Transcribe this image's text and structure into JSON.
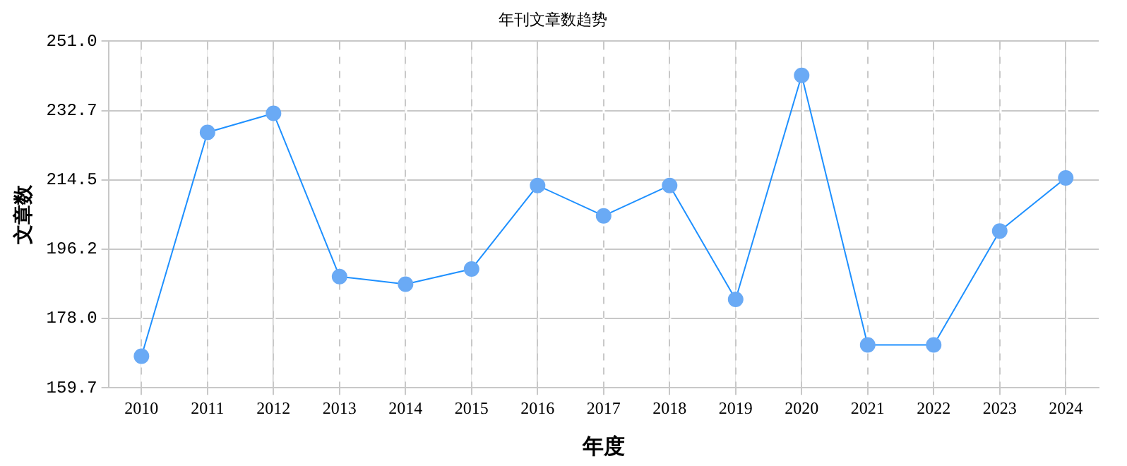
{
  "chart_data": {
    "type": "line",
    "title": "年刊文章数趋势",
    "xlabel": "年度",
    "ylabel": "文章数",
    "categories": [
      "2010",
      "2011",
      "2012",
      "2013",
      "2014",
      "2015",
      "2016",
      "2017",
      "2018",
      "2019",
      "2020",
      "2021",
      "2022",
      "2023",
      "2024"
    ],
    "series": [
      {
        "color": "#1e90ff",
        "values": [
          168,
          227,
          232,
          189,
          187,
          191,
          213,
          205,
          213,
          183,
          242,
          171,
          171,
          201,
          215
        ]
      }
    ],
    "ylim": [
      159.7,
      251.0
    ],
    "yticks": [
      {
        "value": 159.7,
        "label": "159.7"
      },
      {
        "value": 178.0,
        "label": "178.0"
      },
      {
        "value": 196.2,
        "label": "196.2"
      },
      {
        "value": 214.5,
        "label": "214.5"
      },
      {
        "value": 232.7,
        "label": "232.7"
      },
      {
        "value": 251.0,
        "label": "251.0"
      }
    ],
    "grid": true,
    "legend": false,
    "marker": "circle",
    "line_style": "solid"
  }
}
